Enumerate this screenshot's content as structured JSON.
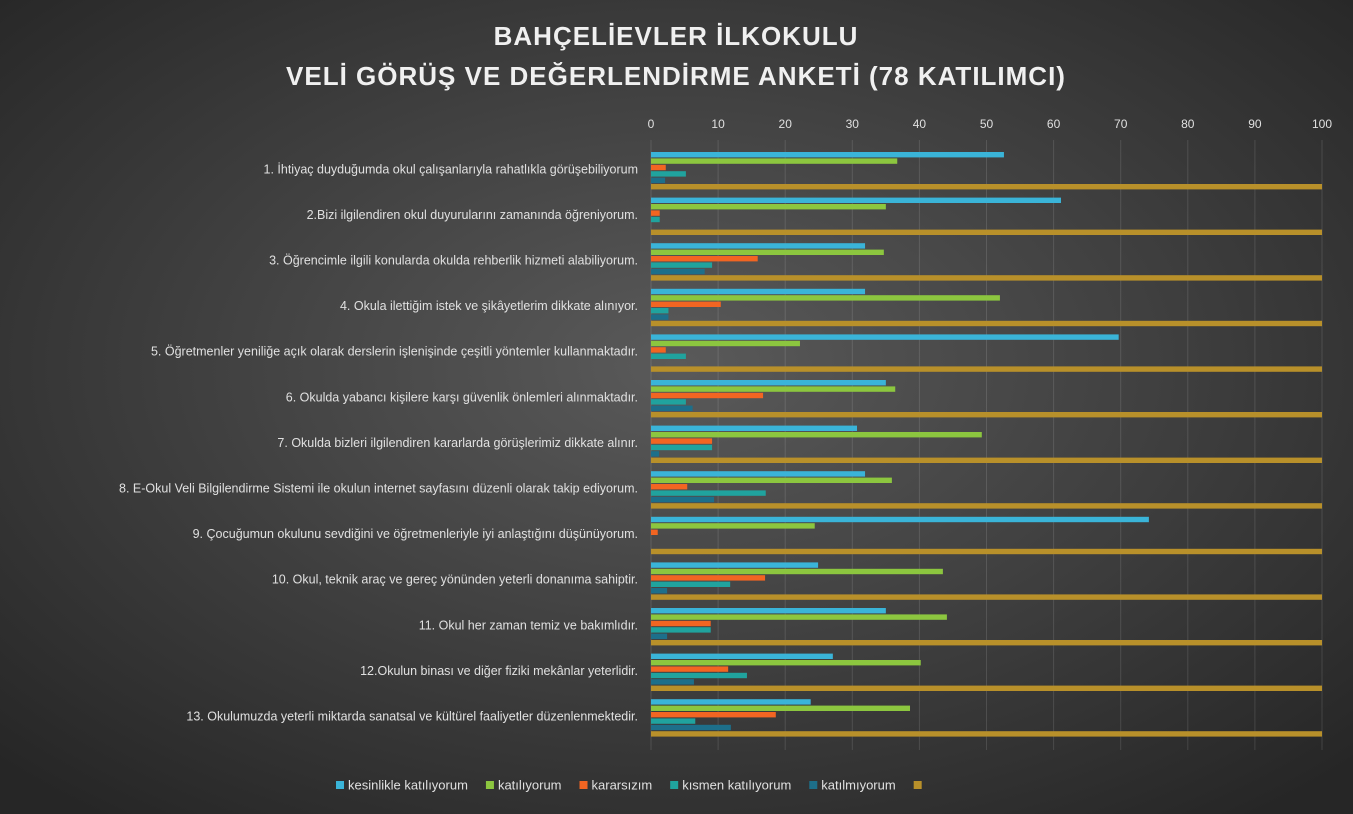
{
  "chart_data": {
    "type": "bar",
    "orientation": "horizontal",
    "title": "BAHÇELİEVLER İLKOKULU",
    "subtitle": "VELİ GÖRÜŞ VE DEĞERLENDİRME ANKETİ (78 KATILIMCI)",
    "categories": [
      "1. İhtiyaç duyduğumda okul çalışanlarıyla rahatlıkla görüşebiliyorum",
      "2.Bizi ilgilendiren okul duyurularını zamanında öğreniyorum.",
      "3. Öğrencimle ilgili konularda okulda rehberlik hizmeti alabiliyorum.",
      "4. Okula ilettiğim istek ve şikâyetlerim dikkate alınıyor.",
      "5. Öğretmenler yeniliğe açık olarak derslerin işlenişinde çeşitli yöntemler kullanmaktadır.",
      "6. Okulda yabancı kişilere karşı güvenlik önlemleri alınmaktadır.",
      "7. Okulda bizleri ilgilendiren kararlarda görüşlerimiz dikkate alınır.",
      "8. E-Okul Veli Bilgilendirme Sistemi ile okulun internet sayfasını düzenli olarak takip ediyorum.",
      "9. Çocuğumun okulunu sevdiğini ve öğretmenleriyle iyi anlaştığını düşünüyorum.",
      "10. Okul, teknik araç ve gereç yönünden yeterli donanıma sahiptir.",
      "11. Okul her zaman temiz ve bakımlıdır.",
      "12.Okulun binası ve diğer fiziki mekânlar yeterlidir.",
      "13. Okulumuzda yeterli miktarda sanatsal ve kültürel faaliyetler düzenlenmektedir."
    ],
    "series": [
      {
        "name": "kesinlikle katılıyorum",
        "color": "#3ab4d8",
        "values": [
          52.6,
          61.1,
          31.9,
          31.9,
          69.7,
          35,
          30.7,
          31.9,
          74.2,
          24.9,
          35,
          27.1,
          23.8
        ]
      },
      {
        "name": "katılıyorum",
        "color": "#8cc63f",
        "values": [
          36.7,
          35,
          34.7,
          52,
          22.2,
          36.4,
          49.3,
          35.9,
          24.4,
          43.5,
          44.1,
          40.2,
          38.6
        ]
      },
      {
        "name": "kararsızım",
        "color": "#f26522",
        "values": [
          2.2,
          1.3,
          15.9,
          10.4,
          2.2,
          16.7,
          9.1,
          5.4,
          1,
          17,
          8.9,
          11.5,
          18.6
        ]
      },
      {
        "name": "kısmen katılıyorum",
        "color": "#20a39e",
        "values": [
          5.2,
          1.3,
          9.1,
          2.6,
          5.2,
          5.2,
          9.1,
          17.1,
          0,
          11.8,
          8.9,
          14.3,
          6.6
        ]
      },
      {
        "name": "katılmıyorum",
        "color": "#1d6f8a",
        "values": [
          2.1,
          0,
          8,
          2.6,
          0,
          6.2,
          1.2,
          9.4,
          0,
          2.4,
          2.4,
          6.4,
          11.9
        ]
      },
      {
        "color": "#b8902a",
        "values": [
          100,
          100,
          100,
          100,
          100,
          100,
          100,
          100,
          100,
          100,
          100,
          100,
          100
        ]
      }
    ],
    "xlim": [
      0,
      100
    ],
    "xticks": [
      0,
      10,
      20,
      30,
      40,
      50,
      60,
      70,
      80,
      90,
      100
    ],
    "grid": true,
    "legend": "bottom"
  }
}
